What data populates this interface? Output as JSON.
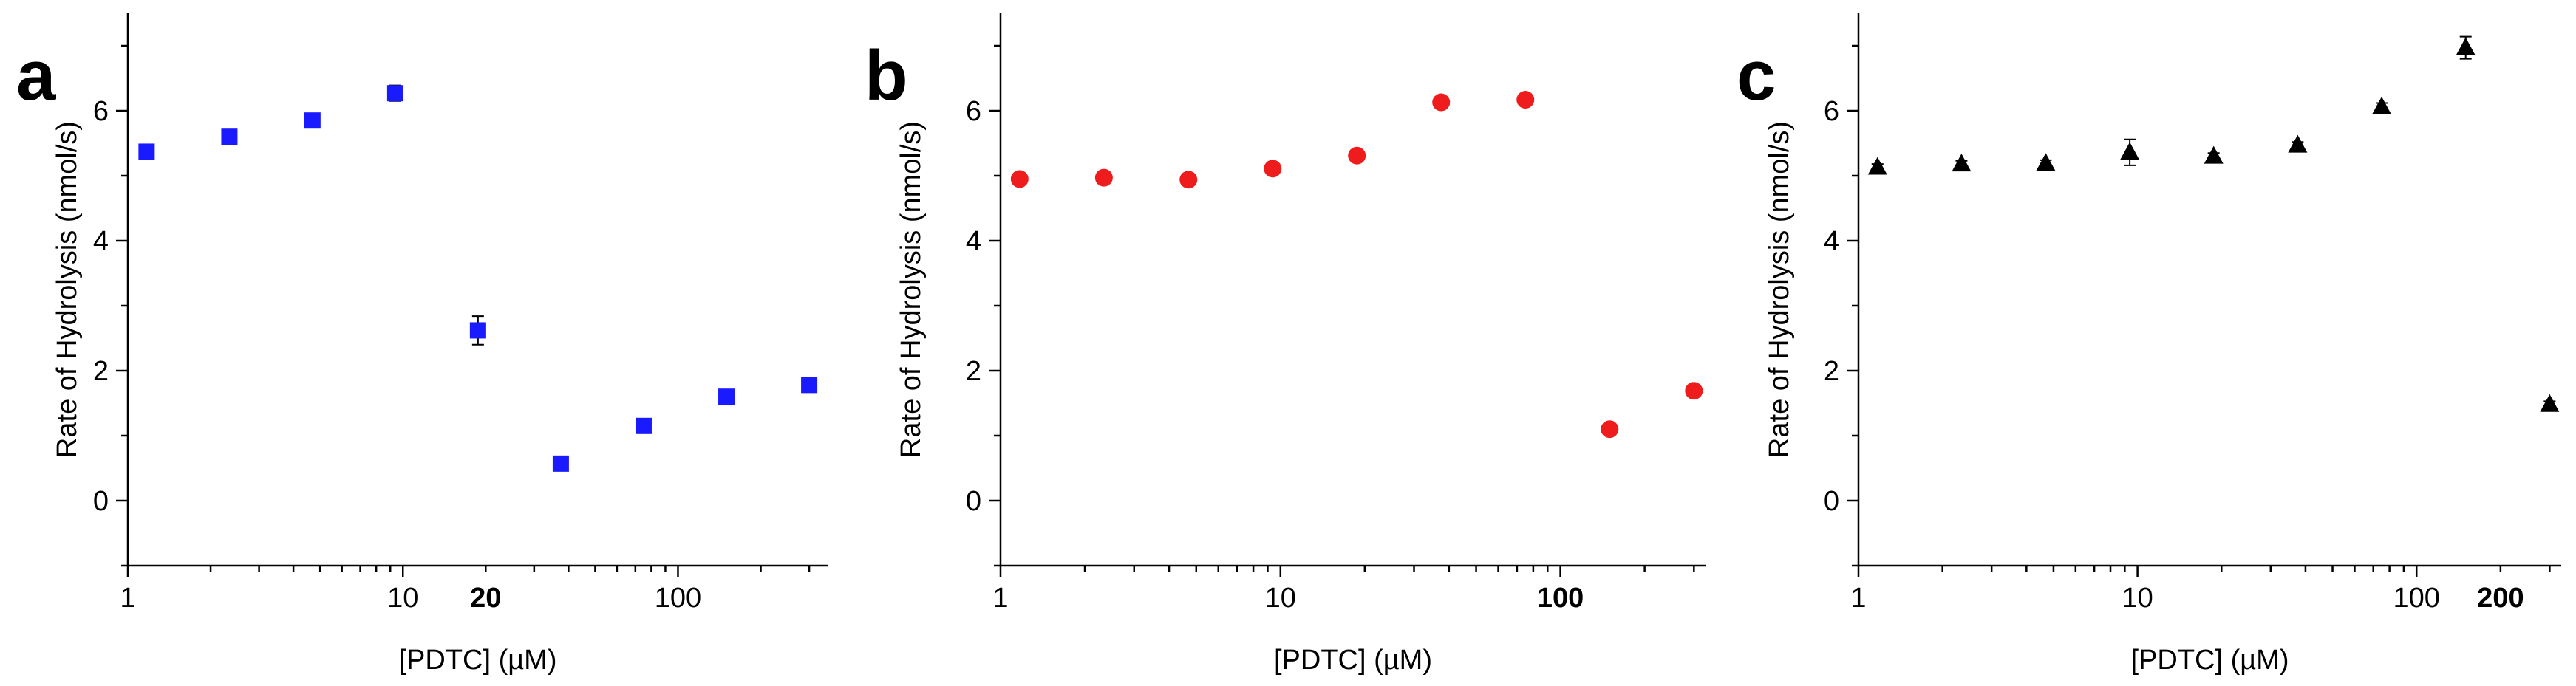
{
  "chart_data": [
    {
      "panel": "a",
      "type": "scatter",
      "xlabel": "[PDTC] (µM)",
      "ylabel": "Rate of Hydrolysis (nmol/s)",
      "xscale": "log",
      "xlim": [
        1,
        350
      ],
      "ylim": [
        -1,
        7.5
      ],
      "xticks": [
        "1",
        "10",
        "20",
        "100"
      ],
      "highlight_tick": "20",
      "yticks": [
        "0",
        "2",
        "4",
        "6"
      ],
      "marker": "square",
      "color": "#1a1aff",
      "series": [
        {
          "x": [
            1.17,
            2.34,
            4.69,
            9.38,
            18.75,
            37.5,
            75,
            150,
            300
          ],
          "y": [
            5.37,
            5.6,
            5.85,
            6.27,
            2.62,
            0.57,
            1.15,
            1.6,
            1.78
          ],
          "err": [
            0.08,
            0.05,
            0.06,
            0.12,
            0.22,
            0.05,
            0.05,
            0.05,
            0.08
          ]
        }
      ]
    },
    {
      "panel": "b",
      "type": "scatter",
      "xlabel": "[PDTC] (µM)",
      "ylabel": "Rate of Hydrolysis (nmol/s)",
      "xscale": "log",
      "xlim": [
        1,
        330
      ],
      "ylim": [
        -1,
        7.5
      ],
      "xticks": [
        "1",
        "10",
        "100"
      ],
      "highlight_tick": "100",
      "yticks": [
        "0",
        "2",
        "4",
        "6"
      ],
      "marker": "circle",
      "color": "#ee1c1c",
      "series": [
        {
          "x": [
            1.17,
            2.34,
            4.69,
            9.38,
            18.75,
            37.5,
            75,
            150,
            300
          ],
          "y": [
            4.95,
            4.97,
            4.94,
            5.11,
            5.31,
            6.13,
            6.17,
            1.1,
            1.69
          ],
          "err": [
            0,
            0,
            0,
            0,
            0,
            0,
            0,
            0,
            0
          ]
        }
      ]
    },
    {
      "panel": "c",
      "type": "scatter",
      "xlabel": "[PDTC] (µM)",
      "ylabel": "Rate of Hydrolysis (nmol/s)",
      "xscale": "log",
      "xlim": [
        1,
        330
      ],
      "ylim": [
        -1,
        7.5
      ],
      "xticks": [
        "1",
        "10",
        "100",
        "200"
      ],
      "highlight_tick": "200",
      "yticks": [
        "0",
        "2",
        "4",
        "6"
      ],
      "marker": "triangle",
      "color": "#000000",
      "series": [
        {
          "x": [
            1.17,
            2.34,
            4.69,
            9.38,
            18.75,
            37.5,
            75,
            150,
            300
          ],
          "y": [
            5.13,
            5.18,
            5.19,
            5.36,
            5.3,
            5.47,
            6.06,
            6.97,
            1.48
          ],
          "err": [
            0.05,
            0.05,
            0.05,
            0.2,
            0.05,
            0.05,
            0.06,
            0.17,
            0.05
          ]
        }
      ]
    }
  ]
}
